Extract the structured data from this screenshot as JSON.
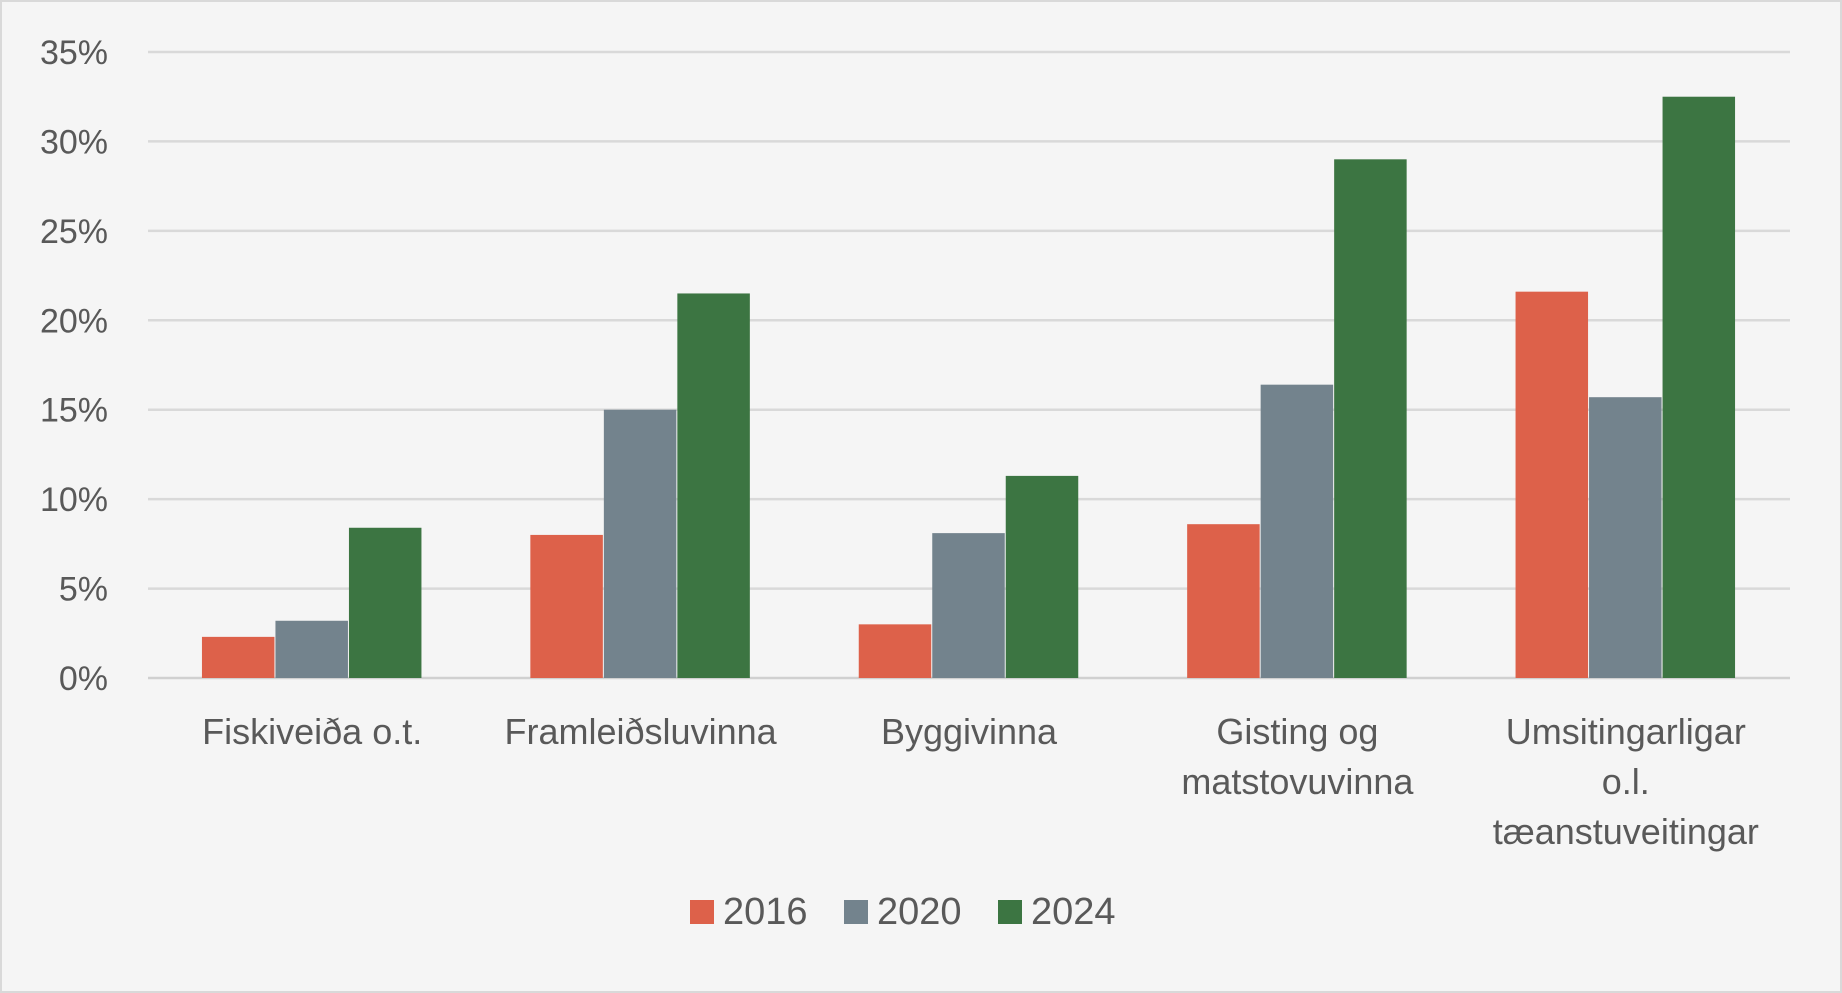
{
  "chart_data": {
    "type": "bar",
    "categories": [
      [
        "Fiskiveiða o.t."
      ],
      [
        "Framleiðsluvinna"
      ],
      [
        "Byggivinna"
      ],
      [
        "Gisting og",
        "matstovuvinna"
      ],
      [
        "Umsitingarligar",
        "o.l.",
        "tæanstuveitingar"
      ]
    ],
    "series": [
      {
        "name": "2016",
        "color": "#dd614a",
        "values": [
          2.3,
          8.0,
          3.0,
          8.6,
          21.6
        ]
      },
      {
        "name": "2020",
        "color": "#73838d",
        "values": [
          3.2,
          15.0,
          8.1,
          16.4,
          15.7
        ]
      },
      {
        "name": "2024",
        "color": "#3c7542",
        "values": [
          8.4,
          21.5,
          11.3,
          29.0,
          32.5
        ]
      }
    ],
    "yticks": [
      "0%",
      "5%",
      "10%",
      "15%",
      "20%",
      "25%",
      "30%",
      "35%"
    ],
    "ylim": [
      0,
      35
    ],
    "ytick_step": 5,
    "grid": true,
    "legend_position": "bottom"
  }
}
